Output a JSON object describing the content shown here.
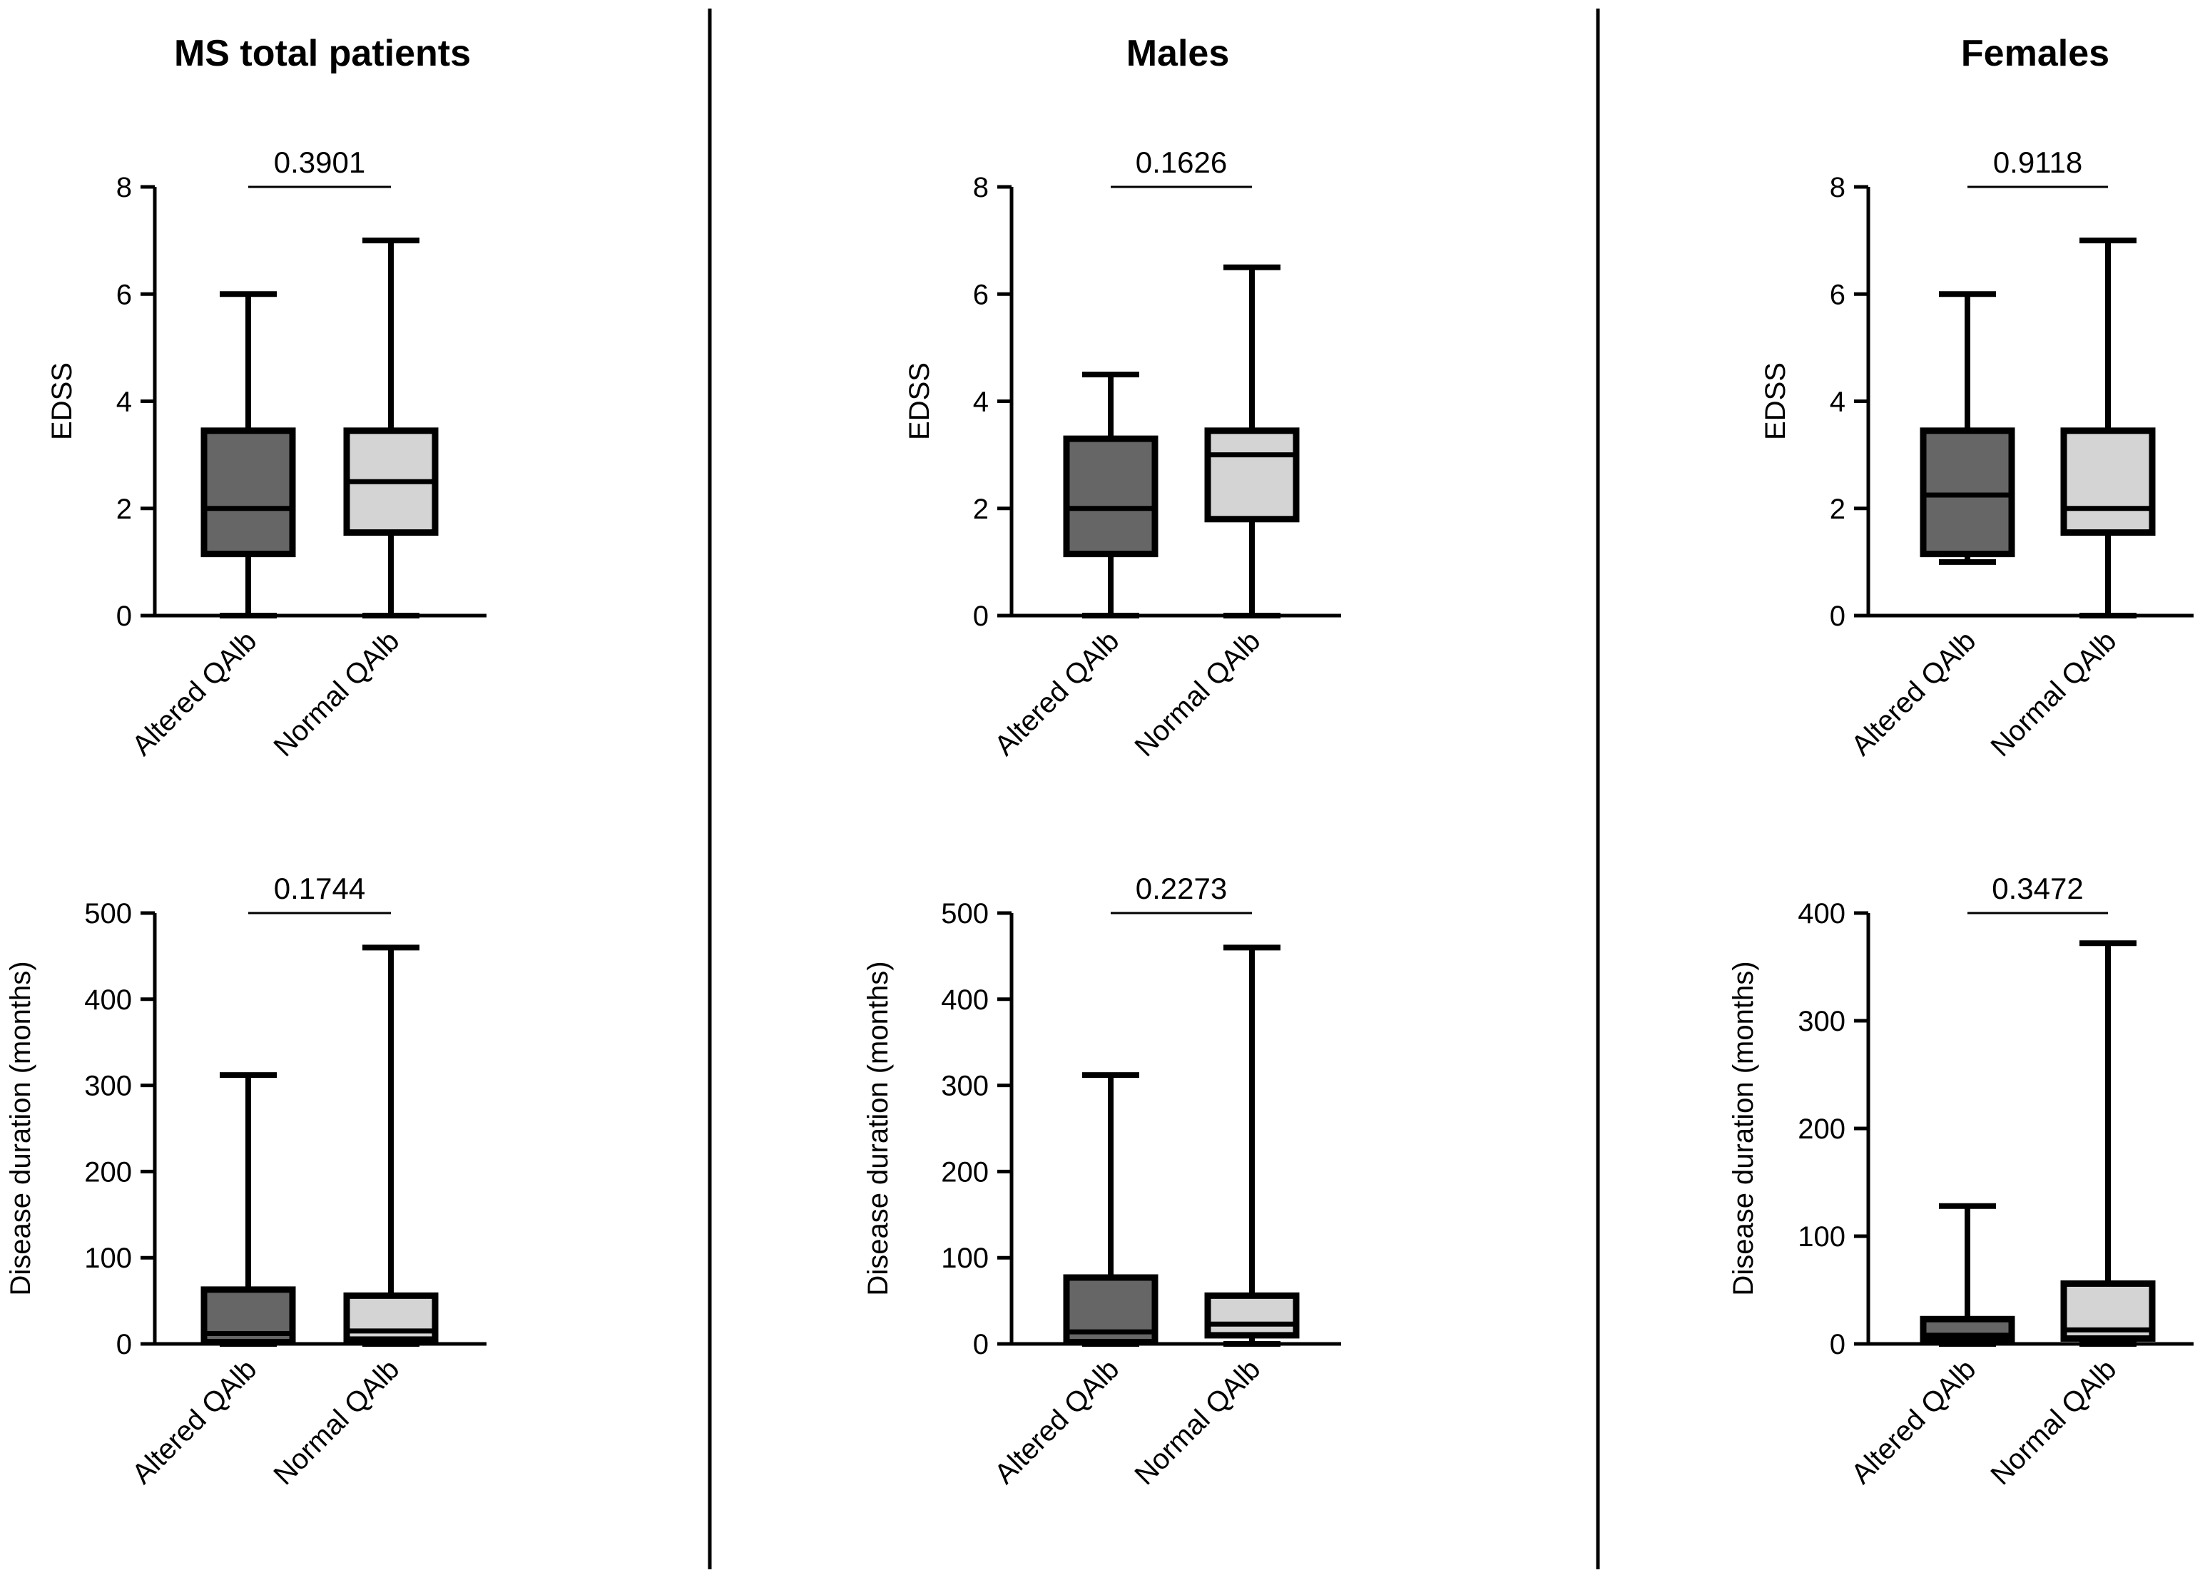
{
  "colors": {
    "altered": "#666666",
    "normal": "#d4d4d4",
    "line": "#000000"
  },
  "panels": [
    {
      "title": "MS total patients"
    },
    {
      "title": "Males"
    },
    {
      "title": "Females"
    }
  ],
  "chart_data": [
    {
      "type": "box",
      "panel": "MS total patients",
      "title": "MS total patients",
      "ylabel": "EDSS",
      "ylim": [
        0,
        8
      ],
      "yticks": [
        "0",
        "2",
        "4",
        "6",
        "8"
      ],
      "categories": [
        "Altered QAlb",
        "Normal QAlb"
      ],
      "p_value": "0.3901",
      "boxes": [
        {
          "name": "Altered QAlb",
          "min": 0,
          "q1": 1.15,
          "median": 2,
          "q3": 3.45,
          "max": 6
        },
        {
          "name": "Normal QAlb",
          "min": 0,
          "q1": 1.55,
          "median": 2.5,
          "q3": 3.45,
          "max": 7
        }
      ]
    },
    {
      "type": "box",
      "panel": "Males",
      "title": "Males",
      "ylabel": "EDSS",
      "ylim": [
        0,
        8
      ],
      "yticks": [
        "0",
        "2",
        "4",
        "6",
        "8"
      ],
      "categories": [
        "Altered QAlb",
        "Normal QAlb"
      ],
      "p_value": "0.1626",
      "boxes": [
        {
          "name": "Altered QAlb",
          "min": 0,
          "q1": 1.15,
          "median": 2,
          "q3": 3.3,
          "max": 4.5
        },
        {
          "name": "Normal QAlb",
          "min": 0,
          "q1": 1.8,
          "median": 3,
          "q3": 3.45,
          "max": 6.5
        }
      ]
    },
    {
      "type": "box",
      "panel": "Females",
      "title": "Females",
      "ylabel": "EDSS",
      "ylim": [
        0,
        8
      ],
      "yticks": [
        "0",
        "2",
        "4",
        "6",
        "8"
      ],
      "categories": [
        "Altered QAlb",
        "Normal QAlb"
      ],
      "p_value": "0.9118",
      "boxes": [
        {
          "name": "Altered QAlb",
          "min": 1,
          "q1": 1.15,
          "median": 2.25,
          "q3": 3.45,
          "max": 6
        },
        {
          "name": "Normal QAlb",
          "min": 0,
          "q1": 1.55,
          "median": 2,
          "q3": 3.45,
          "max": 7
        }
      ]
    },
    {
      "type": "box",
      "panel": "MS total patients",
      "ylabel": "Disease duration (months)",
      "ylim": [
        0,
        500
      ],
      "yticks": [
        "0",
        "100",
        "200",
        "300",
        "400",
        "500"
      ],
      "categories": [
        "Altered QAlb",
        "Normal QAlb"
      ],
      "p_value": "0.1744",
      "boxes": [
        {
          "name": "Altered QAlb",
          "min": 0,
          "q1": 2,
          "median": 12,
          "q3": 63,
          "max": 312
        },
        {
          "name": "Normal QAlb",
          "min": 0,
          "q1": 5,
          "median": 15,
          "q3": 56,
          "max": 460
        }
      ]
    },
    {
      "type": "box",
      "panel": "Males",
      "ylabel": "Disease duration (months)",
      "ylim": [
        0,
        500
      ],
      "yticks": [
        "0",
        "100",
        "200",
        "300",
        "400",
        "500"
      ],
      "categories": [
        "Altered QAlb",
        "Normal QAlb"
      ],
      "p_value": "0.2273",
      "boxes": [
        {
          "name": "Altered QAlb",
          "min": 0,
          "q1": 2,
          "median": 14,
          "q3": 77,
          "max": 312
        },
        {
          "name": "Normal QAlb",
          "min": 0,
          "q1": 10,
          "median": 23,
          "q3": 56,
          "max": 460
        }
      ]
    },
    {
      "type": "box",
      "panel": "Females",
      "ylabel": "Disease duration (months)",
      "ylim": [
        0,
        400
      ],
      "yticks": [
        "0",
        "100",
        "200",
        "300",
        "400"
      ],
      "categories": [
        "Altered QAlb",
        "Normal QAlb"
      ],
      "p_value": "0.3472",
      "boxes": [
        {
          "name": "Altered QAlb",
          "min": 0,
          "q1": 3,
          "median": 8,
          "q3": 23,
          "max": 128
        },
        {
          "name": "Normal QAlb",
          "min": 0,
          "q1": 5,
          "median": 13,
          "q3": 56,
          "max": 372
        }
      ]
    }
  ]
}
